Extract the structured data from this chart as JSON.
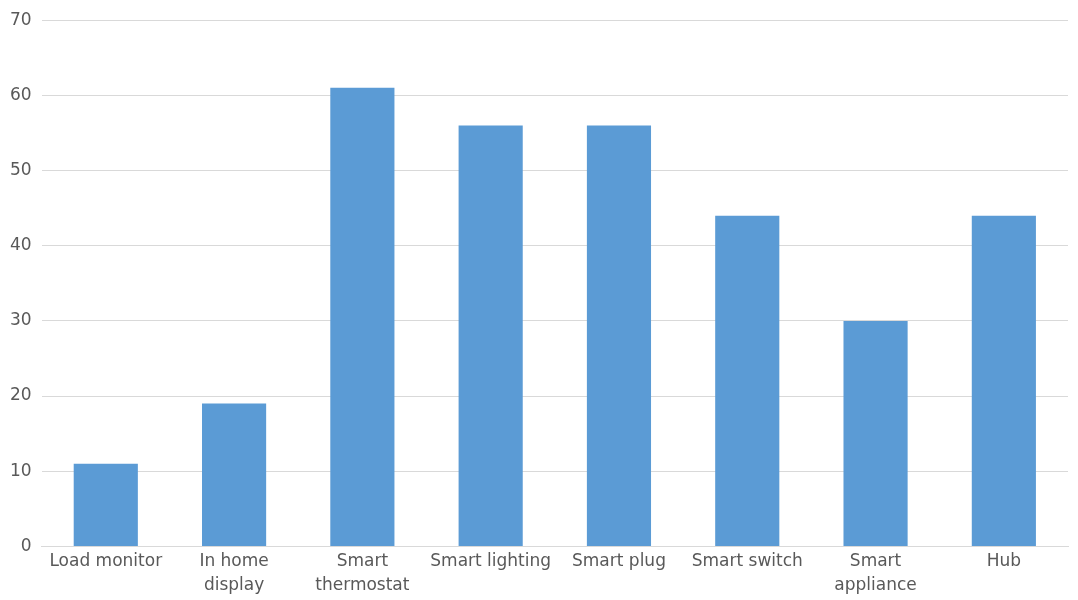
{
  "chart_data": {
    "type": "bar",
    "categories": [
      "Load monitor",
      "In home display",
      "Smart thermostat",
      "Smart lighting",
      "Smart plug",
      "Smart switch",
      "Smart appliance",
      "Hub"
    ],
    "values": [
      11,
      19,
      61,
      56,
      56,
      44,
      30,
      44
    ],
    "color": "#5b9bd5",
    "ylim": [
      0,
      70
    ],
    "yticks": [
      0,
      10,
      20,
      30,
      40,
      50,
      60,
      70
    ],
    "grid": "y",
    "legend": false
  }
}
